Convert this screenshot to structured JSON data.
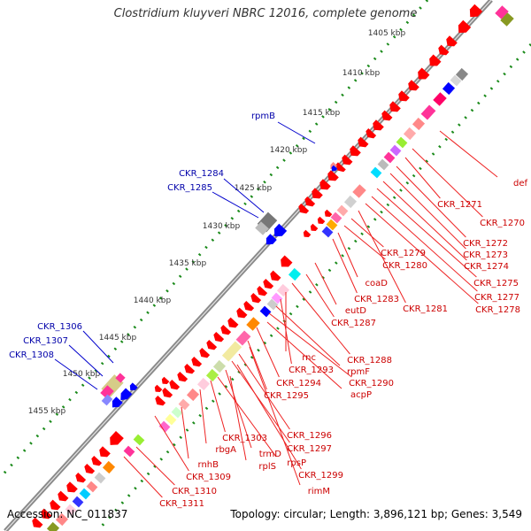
{
  "title": "Clostridium kluyveri NBRC 12016, complete genome",
  "footer": {
    "accession": "Accession: NC_011837",
    "topology": "Topology: circular; Length: 3,896,121 bp; Genes: 3,549"
  },
  "ticks": [
    {
      "label": "1405 kbp"
    },
    {
      "label": "1410 kbp"
    },
    {
      "label": "1415 kbp"
    },
    {
      "label": "1420 kbp"
    },
    {
      "label": "1425 kbp"
    },
    {
      "label": "1430 kbp"
    },
    {
      "label": "1435 kbp"
    },
    {
      "label": "1440 kbp"
    },
    {
      "label": "1445 kbp"
    },
    {
      "label": "1450 kbp"
    },
    {
      "label": "1455 kbp"
    }
  ],
  "colors": {
    "forward_gene": "#ff0000",
    "reverse_gene": "#0000ff",
    "pseudo_gene": "#888888",
    "forward_label": "#cc0000",
    "reverse_label": "#0000aa",
    "backbone": "#888888",
    "tick_dots": "#118811"
  },
  "blue_labels": [
    {
      "text": "rpmB"
    },
    {
      "text": "CKR_1284"
    },
    {
      "text": "CKR_1285"
    },
    {
      "text": "CKR_1306"
    },
    {
      "text": "CKR_1307"
    },
    {
      "text": "CKR_1308"
    }
  ],
  "red_labels": [
    {
      "text": "def"
    },
    {
      "text": "CKR_1270"
    },
    {
      "text": "CKR_1271"
    },
    {
      "text": "CKR_1272"
    },
    {
      "text": "CKR_1273"
    },
    {
      "text": "CKR_1274"
    },
    {
      "text": "CKR_1275"
    },
    {
      "text": "CKR_1277"
    },
    {
      "text": "CKR_1278"
    },
    {
      "text": "CKR_1281"
    },
    {
      "text": "CKR_1279"
    },
    {
      "text": "CKR_1280"
    },
    {
      "text": "coaD"
    },
    {
      "text": "CKR_1283"
    },
    {
      "text": "eutD"
    },
    {
      "text": "CKR_1287"
    },
    {
      "text": "CKR_1288"
    },
    {
      "text": "rnc"
    },
    {
      "text": "CKR_1293"
    },
    {
      "text": "rpmF"
    },
    {
      "text": "CKR_1290"
    },
    {
      "text": "CKR_1294"
    },
    {
      "text": "acpP"
    },
    {
      "text": "CKR_1295"
    },
    {
      "text": "CKR_1296"
    },
    {
      "text": "CKR_1303"
    },
    {
      "text": "CKR_1297"
    },
    {
      "text": "rbgA"
    },
    {
      "text": "trmD"
    },
    {
      "text": "rpsP"
    },
    {
      "text": "rnhB"
    },
    {
      "text": "rplS"
    },
    {
      "text": "CKR_1299"
    },
    {
      "text": "CKR_1309"
    },
    {
      "text": "rimM"
    },
    {
      "text": "CKR_1310"
    },
    {
      "text": "CKR_1311"
    }
  ]
}
